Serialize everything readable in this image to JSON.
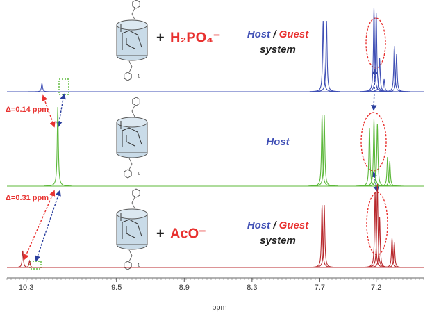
{
  "chart_data": {
    "type": "spectrum",
    "xlabel": "ppm",
    "xlim": [
      10.47,
      6.78
    ],
    "xticks": [
      10.3,
      9.5,
      8.9,
      8.3,
      7.7,
      7.2
    ],
    "ylim": [
      0,
      100
    ],
    "series": [
      {
        "color": "#3f4fb5",
        "x": [
          10.16,
          7.67,
          7.64,
          7.22,
          7.2,
          7.17,
          7.13,
          7.04,
          7.02
        ],
        "values": [
          10,
          85,
          85,
          100,
          95,
          40,
          15,
          55,
          45
        ]
      },
      {
        "color": "#5cb83a",
        "x": [
          10.02,
          7.68,
          7.66,
          7.26,
          7.22,
          7.19,
          7.1,
          7.08
        ],
        "values": [
          95,
          85,
          85,
          70,
          80,
          75,
          35,
          30
        ]
      },
      {
        "color": "#b8282c",
        "x": [
          10.33,
          10.27,
          7.68,
          7.66,
          7.21,
          7.19,
          7.17,
          7.06,
          7.04
        ],
        "values": [
          20,
          8,
          75,
          75,
          90,
          100,
          60,
          35,
          30
        ]
      }
    ],
    "annotations": {
      "delta_top": "Δ=0.14 ppm",
      "delta_bottom": "Δ=0.31 ppm",
      "plus": "+",
      "anion_top": "H₂PO₄⁻",
      "anion_bottom": "AcO⁻",
      "host": "Host",
      "slash": "/",
      "guest": "Guest",
      "system": "system",
      "compound": "1"
    }
  }
}
